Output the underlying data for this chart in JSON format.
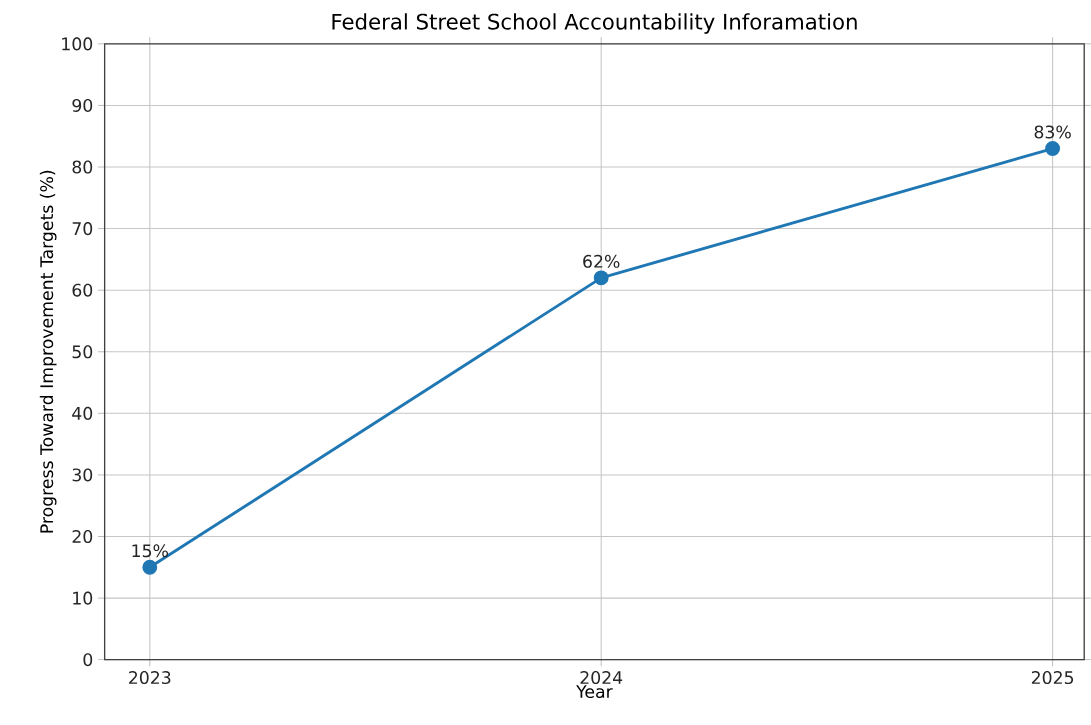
{
  "chart_data": {
    "type": "line",
    "title": "Federal Street School Accountability Inforamation",
    "xlabel": "Year",
    "ylabel": "Progress Toward Improvement Targets (%)",
    "categories": [
      "2023",
      "2024",
      "2025"
    ],
    "series": [
      {
        "color": "#1f77b4",
        "values": [
          15,
          62,
          83
        ],
        "value_labels": [
          "15%",
          "62%",
          "83%"
        ]
      }
    ],
    "ylim": [
      0,
      100
    ],
    "yticks": [
      0,
      10,
      20,
      30,
      40,
      50,
      60,
      70,
      80,
      90,
      100
    ],
    "grid": true,
    "marker": "circle",
    "line_style": "solid"
  }
}
